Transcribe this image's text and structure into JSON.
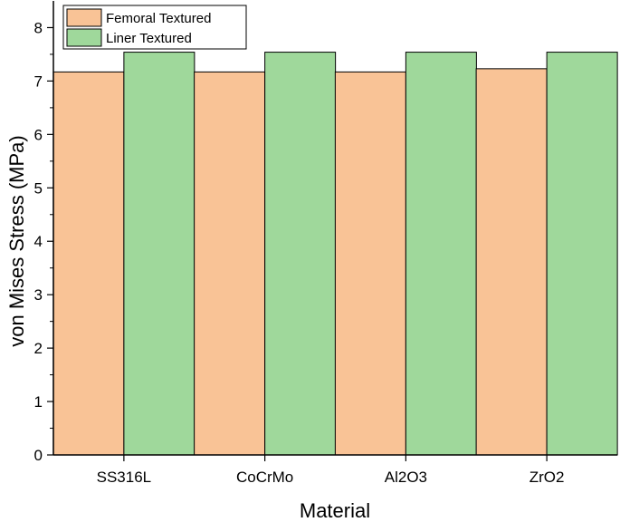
{
  "chart_data": {
    "type": "bar",
    "categories": [
      "SS316L",
      "CoCrMo",
      "Al2O3",
      "ZrO2"
    ],
    "series": [
      {
        "name": "Femoral Textured",
        "values": [
          7.17,
          7.17,
          7.17,
          7.23
        ],
        "color": "#f9c396"
      },
      {
        "name": "Liner Textured",
        "values": [
          7.54,
          7.54,
          7.54,
          7.54
        ],
        "color": "#9fd89b"
      }
    ],
    "xlabel": "Material",
    "ylabel": "von Mises Stress (MPa)",
    "ylim": [
      0,
      8.5
    ],
    "yticks": [
      0,
      1,
      2,
      3,
      4,
      5,
      6,
      7,
      8
    ],
    "legend_position": "top-left",
    "grid": false
  }
}
